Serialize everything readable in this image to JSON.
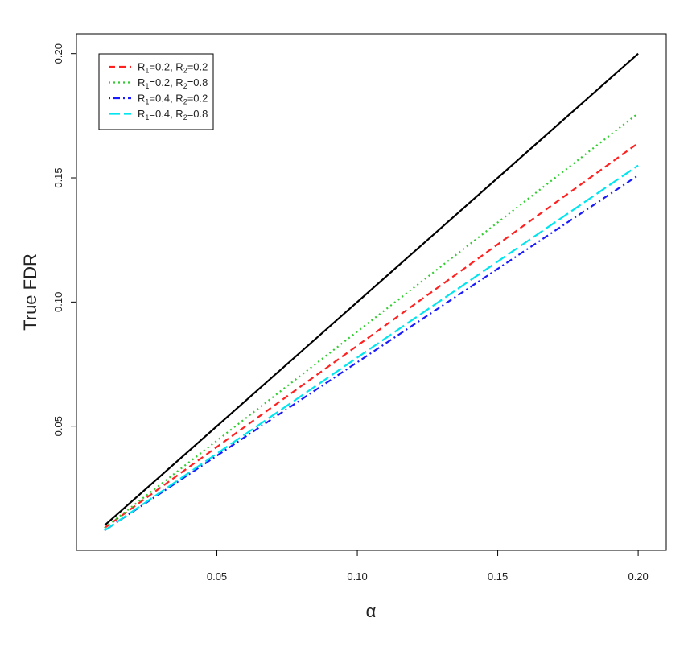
{
  "chart_data": {
    "type": "line",
    "title": "",
    "xlabel": "α",
    "ylabel": "True FDR",
    "xlim": [
      0.0,
      0.21
    ],
    "ylim": [
      0.0,
      0.208
    ],
    "x_ticks": [
      0.05,
      0.1,
      0.15,
      0.2
    ],
    "x_tick_labels": [
      "0.05",
      "0.10",
      "0.15",
      "0.20"
    ],
    "y_ticks": [
      0.05,
      0.1,
      0.15,
      0.2
    ],
    "y_tick_labels": [
      "0.05",
      "0.10",
      "0.15",
      "0.20"
    ],
    "grid": false,
    "legend_position": "top-left",
    "x": [
      0.01,
      0.2
    ],
    "series": [
      {
        "name": "",
        "color": "#000000",
        "dash": "solid",
        "values": [
          0.01,
          0.2
        ]
      },
      {
        "name": "R1=0.2, R2=0.2",
        "legend": {
          "a": "R",
          "a_sub": "1",
          "mid": "=0.2, R",
          "b_sub": "2",
          "end": "=0.2"
        },
        "color": "#ff2020",
        "dash": "dashed",
        "values": [
          0.009,
          0.164
        ]
      },
      {
        "name": "R1=0.2, R2=0.8",
        "legend": {
          "a": "R",
          "a_sub": "1",
          "mid": "=0.2, R",
          "b_sub": "2",
          "end": "=0.8"
        },
        "color": "#33cc33",
        "dash": "dotted",
        "values": [
          0.009,
          0.176
        ]
      },
      {
        "name": "R1=0.4, R2=0.2",
        "legend": {
          "a": "R",
          "a_sub": "1",
          "mid": "=0.4, R",
          "b_sub": "2",
          "end": "=0.2"
        },
        "color": "#1a1aff",
        "dash": "dotdash",
        "values": [
          0.008,
          0.151
        ]
      },
      {
        "name": "R1=0.4, R2=0.8",
        "legend": {
          "a": "R",
          "a_sub": "1",
          "mid": "=0.4, R",
          "b_sub": "2",
          "end": "=0.8"
        },
        "color": "#00e5ee",
        "dash": "longdash",
        "values": [
          0.008,
          0.155
        ]
      }
    ]
  }
}
